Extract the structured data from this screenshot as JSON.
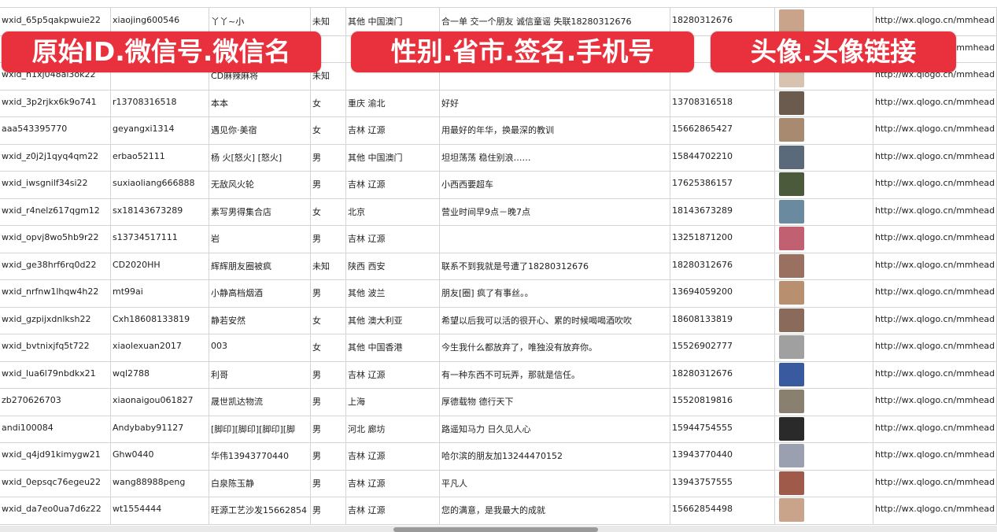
{
  "banners": [
    "原始ID.微信号.微信名",
    "性别.省市.签名.手机号",
    "头像.头像链接"
  ],
  "rows": [
    {
      "id": "wxid_65p5qakpwuie22",
      "wechat": "xiaojing600546",
      "name": "丫丫~小",
      "gender": "未知",
      "region": "其他 中国澳门",
      "signature": "合一单 交一个朋友 诚信童谣 失联18280312676",
      "phone": "18280312676",
      "link": "http://wx.qlogo.cn/mmhead"
    },
    {
      "link": "http://wx.qlogo.cn/mmhead"
    },
    {
      "id": "wxid_h1xj048al3ok22",
      "name": "CD麻辣麻将",
      "gender": "未知",
      "link": "http://wx.qlogo.cn/mmhead"
    },
    {
      "id": "wxid_3p2rjkx6k9o741",
      "wechat": "r13708316518",
      "name": "本本",
      "gender": "女",
      "region": "重庆 渝北",
      "signature": "好好",
      "phone": "13708316518",
      "link": "http://wx.qlogo.cn/mmhead"
    },
    {
      "id": "aaa543395770",
      "wechat": "geyangxi1314",
      "name": "遇见你·美宿",
      "gender": "女",
      "region": "吉林 辽源",
      "signature": "用最好的年华，换最深的教训",
      "phone": "15662865427",
      "link": "http://wx.qlogo.cn/mmhead"
    },
    {
      "id": "wxid_z0j2j1qyq4qm22",
      "wechat": "erbao52111",
      "name": "杨 火[怒火] [怒火]",
      "gender": "男",
      "region": "其他 中国澳门",
      "signature": "坦坦荡荡 稳住别浪……",
      "phone": "15844702210",
      "link": "http://wx.qlogo.cn/mmhead"
    },
    {
      "id": "wxid_iwsgnilf34si22",
      "wechat": "suxiaoliang666888",
      "name": "无敌风火轮",
      "gender": "男",
      "region": "吉林 辽源",
      "signature": "小西西要超车",
      "phone": "17625386157",
      "link": "http://wx.qlogo.cn/mmhead"
    },
    {
      "id": "wxid_r4nelz617qgm12",
      "wechat": "sx18143673289",
      "name": "素写男得集合店",
      "gender": "女",
      "region": "北京",
      "signature": "营业时间早9点－晚7点",
      "phone": "18143673289",
      "link": "http://wx.qlogo.cn/mmhead"
    },
    {
      "id": "wxid_opvj8wo5hb9r22",
      "wechat": "s13734517111",
      "name": "岩",
      "gender": "男",
      "region": "吉林 辽源",
      "phone": "13251871200",
      "link": "http://wx.qlogo.cn/mmhead"
    },
    {
      "id": "wxid_ge38hrf6rq0d22",
      "wechat": "CD2020HH",
      "name": "辉辉朋友圈被疯",
      "gender": "未知",
      "region": "陕西 西安",
      "signature": "联系不到我就是号遭了18280312676",
      "phone": "18280312676",
      "link": "http://wx.qlogo.cn/mmhead"
    },
    {
      "id": "wxid_nrfnw1lhqw4h22",
      "wechat": "mt99ai",
      "name": "小静高档烟酒",
      "gender": "男",
      "region": "其他 波兰",
      "signature": "朋友[圈] 疯了有事丝。。",
      "phone": "13694059200",
      "link": "http://wx.qlogo.cn/mmhead"
    },
    {
      "id": "wxid_gzpijxdnlksh22",
      "wechat": "Cxh18608133819",
      "name": "静若安然",
      "gender": "女",
      "region": "其他 澳大利亚",
      "signature": "希望以后我可以活的很开心、累的时候喝喝酒吹吹",
      "phone": "18608133819",
      "link": "http://wx.qlogo.cn/mmhead"
    },
    {
      "id": "wxid_bvtnixjfq5t722",
      "wechat": "xiaolexuan2017",
      "name": "003",
      "gender": "女",
      "region": "其他 中国香港",
      "signature": "今生我什么都放弃了，唯独没有放弃你。",
      "phone": "15526902777",
      "link": "http://wx.qlogo.cn/mmhead"
    },
    {
      "id": "wxid_lua6l79nbdkx21",
      "wechat": "wql2788",
      "name": "利哥",
      "gender": "男",
      "region": "吉林 辽源",
      "signature": "有一种东西不可玩弄，那就是信任。",
      "phone": "18280312676",
      "link": "http://wx.qlogo.cn/mmhead"
    },
    {
      "id": "zb270626703",
      "wechat": "xiaonaigou061827",
      "name": "晟世凯达物流",
      "gender": "男",
      "region": "上海",
      "signature": "厚德载物 德行天下",
      "phone": "15520819816",
      "link": "http://wx.qlogo.cn/mmhead"
    },
    {
      "id": "andi100084",
      "wechat": "Andybaby91127",
      "name": "[脚印][脚印][脚印][脚",
      "gender": "男",
      "region": "河北 廊坊",
      "signature": "路遥知马力 日久见人心",
      "phone": "15944754555",
      "link": "http://wx.qlogo.cn/mmhead"
    },
    {
      "id": "wxid_q4jd91kimygw21",
      "wechat": "Ghw0440",
      "name": "华伟13943770440",
      "gender": "男",
      "region": "吉林 辽源",
      "signature": "哈尔滨的朋友加13244470152",
      "phone": "13943770440",
      "link": "http://wx.qlogo.cn/mmhead"
    },
    {
      "id": "wxid_0epsqc76egeu22",
      "wechat": "wang88988peng",
      "name": "白泉陈玉静",
      "gender": "男",
      "region": "吉林 辽源",
      "signature": "平凡人",
      "phone": "13943757555",
      "link": "http://wx.qlogo.cn/mmhead"
    },
    {
      "id": "wxid_da7eo0ua7d6z22",
      "wechat": "wt1554444",
      "name": "旺源工艺沙发15662854",
      "gender": "男",
      "region": "吉林 辽源",
      "signature": "您的满意，是我最大的成就",
      "phone": "15662854498",
      "link": "http://wx.qlogo.cn/mmhead"
    }
  ]
}
